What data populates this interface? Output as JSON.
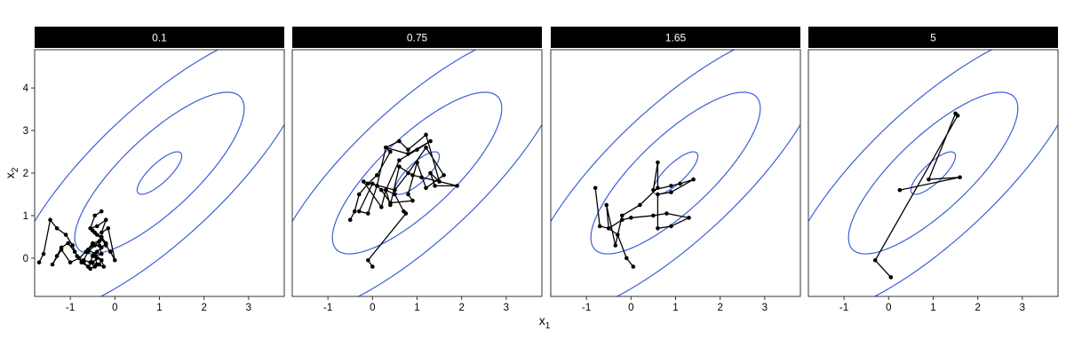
{
  "chart_data": {
    "type": "scatter",
    "subtype": "faceted random-walk paths over elliptical contours",
    "xlabel": "x",
    "xlabel_sub": "1",
    "ylabel": "x",
    "ylabel_sub": "2",
    "xlim": [
      -1.8,
      3.8
    ],
    "ylim": [
      -0.9,
      4.9
    ],
    "x_ticks": [
      -1,
      0,
      1,
      2,
      3
    ],
    "y_ticks": [
      0,
      1,
      2,
      3,
      4
    ],
    "x_tick_labels": [
      "-1",
      "0",
      "1",
      "2",
      "3"
    ],
    "y_tick_labels": [
      "0",
      "1",
      "2",
      "3",
      "4"
    ],
    "grid": false,
    "contours": {
      "center": [
        1,
        2
      ],
      "rho": 0.8,
      "sigma": 1,
      "levels_chi": [
        0.5,
        1.9,
        3.35
      ],
      "color": "#3b5fd9"
    },
    "colors": {
      "path": "#000000",
      "strip_bg": "#000000",
      "strip_text": "#ffffff",
      "panel_border": "#333333"
    },
    "panels": [
      {
        "label": "0.1",
        "x": [
          -1.7,
          -1.6,
          -1.45,
          -1.3,
          -1.1,
          -0.95,
          -0.85,
          -0.7,
          -0.55,
          -0.4,
          -0.45,
          -0.3,
          -0.35,
          -0.5,
          -0.6,
          -0.45,
          -0.3,
          -0.25,
          -0.4,
          -0.55,
          -0.7,
          -0.6,
          -0.45,
          -0.35,
          -0.5,
          -0.65,
          -0.8,
          -1.0,
          -1.2,
          -1.4,
          -1.3,
          -1.2,
          -1.05,
          -0.9,
          -0.75,
          -0.6,
          -0.5,
          -0.4,
          -0.3,
          -0.35,
          -0.45,
          -0.55,
          -0.5,
          -0.4,
          -0.3,
          -0.2,
          -0.3,
          -0.45,
          -0.5,
          -0.4,
          -0.3,
          -0.2,
          -0.1,
          0.0,
          -0.15,
          -0.3,
          -0.2,
          -0.4,
          -0.55,
          -0.45,
          -0.3
        ],
        "y": [
          -0.1,
          0.1,
          0.9,
          0.7,
          0.55,
          0.3,
          0.05,
          -0.1,
          -0.25,
          -0.15,
          0.05,
          0.1,
          0.3,
          0.3,
          0.2,
          0.1,
          -0.05,
          -0.2,
          -0.15,
          -0.1,
          -0.05,
          0.15,
          0.3,
          0.4,
          0.35,
          0.15,
          0.0,
          -0.1,
          0.2,
          -0.15,
          0.05,
          0.25,
          0.35,
          0.15,
          -0.1,
          -0.2,
          -0.1,
          0.0,
          -0.05,
          -0.15,
          -0.2,
          -0.1,
          0.05,
          0.15,
          0.25,
          0.35,
          0.5,
          0.6,
          0.65,
          0.55,
          0.45,
          0.3,
          0.15,
          -0.05,
          0.7,
          0.6,
          0.9,
          0.75,
          0.7,
          1.0,
          1.1
        ]
      },
      {
        "label": "0.75",
        "x": [
          -0.5,
          -0.4,
          -0.3,
          -0.1,
          0.1,
          0.4,
          0.3,
          0.8,
          1.3,
          1.0,
          0.6,
          0.3,
          0.2,
          -0.2,
          0.5,
          0.8,
          1.2,
          1.6,
          1.2,
          1.0,
          0.8,
          0.9,
          0.4,
          0.2,
          0.1,
          0.0,
          -0.3,
          -0.1,
          0.1,
          0.3,
          0.6,
          0.8,
          1.2,
          1.5,
          1.3,
          1.4,
          1.9,
          1.1,
          0.9,
          0.6,
          0.4,
          0.3,
          0.5,
          0.7,
          0.75,
          -0.1,
          0.0
        ],
        "y": [
          0.9,
          1.1,
          1.5,
          1.75,
          1.95,
          2.5,
          2.6,
          2.45,
          2.75,
          2.55,
          2.3,
          1.6,
          1.2,
          1.8,
          1.6,
          2.0,
          2.6,
          1.95,
          1.65,
          2.25,
          1.5,
          1.35,
          1.3,
          1.6,
          1.7,
          1.75,
          1.1,
          1.05,
          1.7,
          2.6,
          2.75,
          2.55,
          2.9,
          1.8,
          2.0,
          1.7,
          1.7,
          1.9,
          1.95,
          2.15,
          1.25,
          1.6,
          1.5,
          1.1,
          1.05,
          -0.05,
          -0.2
        ]
      },
      {
        "label": "1.65",
        "x": [
          -0.8,
          -0.7,
          -0.5,
          -0.55,
          -0.35,
          -0.2,
          0.2,
          0.6,
          0.6,
          0.5,
          0.9,
          1.1,
          1.4,
          0.9,
          0.6,
          0.6,
          0.9,
          1.3,
          0.8,
          0.5,
          0.0,
          -0.2,
          -0.5,
          -0.3,
          -0.1,
          0.05
        ],
        "y": [
          1.65,
          0.75,
          0.7,
          1.25,
          0.3,
          1.0,
          1.25,
          1.65,
          2.25,
          1.6,
          1.7,
          1.75,
          1.85,
          1.55,
          1.5,
          0.7,
          0.75,
          0.95,
          1.05,
          1.0,
          0.95,
          0.9,
          0.7,
          0.55,
          0.0,
          -0.2
        ]
      },
      {
        "label": "5",
        "x": [
          0.05,
          -0.3,
          1.55,
          1.5,
          0.9,
          1.6,
          0.25
        ],
        "y": [
          -0.45,
          -0.05,
          3.35,
          3.4,
          1.85,
          1.9,
          1.6
        ]
      }
    ]
  }
}
